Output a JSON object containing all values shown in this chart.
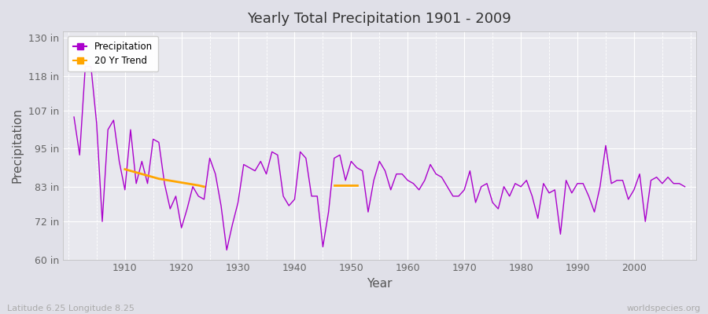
{
  "title": "Yearly Total Precipitation 1901 - 2009",
  "xlabel": "Year",
  "ylabel": "Precipitation",
  "subtitle_lat_lon": "Latitude 6.25 Longitude 8.25",
  "watermark": "worldspecies.org",
  "ylim": [
    60,
    132
  ],
  "yticks": [
    60,
    72,
    83,
    95,
    107,
    118,
    130
  ],
  "ytick_labels": [
    "60 in",
    "72 in",
    "83 in",
    "95 in",
    "107 in",
    "118 in",
    "130 in"
  ],
  "xlim": [
    1899,
    2011
  ],
  "precipitation_line_color": "#AA00CC",
  "trend_line_color": "#FFA500",
  "bg_color": "#E8E8EE",
  "fig_bg_color": "#E0E0E8",
  "grid_color": "#FFFFFF",
  "legend_items": [
    "Precipitation",
    "20 Yr Trend"
  ],
  "years": [
    1901,
    1902,
    1903,
    1904,
    1905,
    1906,
    1907,
    1908,
    1909,
    1910,
    1911,
    1912,
    1913,
    1914,
    1915,
    1916,
    1917,
    1918,
    1919,
    1920,
    1921,
    1922,
    1923,
    1924,
    1925,
    1926,
    1927,
    1928,
    1929,
    1930,
    1931,
    1932,
    1933,
    1934,
    1935,
    1936,
    1937,
    1938,
    1939,
    1940,
    1941,
    1942,
    1943,
    1944,
    1945,
    1946,
    1947,
    1948,
    1949,
    1950,
    1951,
    1952,
    1953,
    1954,
    1955,
    1956,
    1957,
    1958,
    1959,
    1960,
    1961,
    1962,
    1963,
    1964,
    1965,
    1966,
    1967,
    1968,
    1969,
    1970,
    1971,
    1972,
    1973,
    1974,
    1975,
    1976,
    1977,
    1978,
    1979,
    1980,
    1981,
    1982,
    1983,
    1984,
    1985,
    1986,
    1987,
    1988,
    1989,
    1990,
    1991,
    1992,
    1993,
    1994,
    1995,
    1996,
    1997,
    1998,
    1999,
    2000,
    2001,
    2002,
    2003,
    2004,
    2005,
    2006,
    2007,
    2008,
    2009
  ],
  "precip_values": [
    105,
    93,
    121,
    121,
    103,
    72,
    101,
    104,
    91,
    82,
    101,
    84,
    91,
    84,
    98,
    97,
    84,
    76,
    80,
    70,
    76,
    83,
    80,
    79,
    92,
    87,
    77,
    63,
    71,
    78,
    90,
    89,
    88,
    91,
    87,
    94,
    93,
    80,
    77,
    79,
    94,
    92,
    80,
    80,
    64,
    75,
    92,
    93,
    85,
    91,
    89,
    88,
    75,
    85,
    91,
    88,
    82,
    87,
    87,
    85,
    84,
    82,
    85,
    90,
    87,
    86,
    83,
    80,
    80,
    82,
    88,
    78,
    83,
    84,
    78,
    76,
    83,
    80,
    84,
    83,
    85,
    80,
    73,
    84,
    81,
    82,
    68,
    85,
    81,
    84,
    84,
    80,
    75,
    83,
    96,
    84,
    85,
    85,
    79,
    82,
    87,
    72,
    85,
    86,
    84,
    86,
    84,
    84,
    83
  ],
  "trend_seg1_years": [
    1910,
    1911,
    1912,
    1913,
    1914,
    1915,
    1916,
    1917,
    1918,
    1919,
    1920,
    1921,
    1922,
    1923,
    1924
  ],
  "trend_seg1_values": [
    88.5,
    88.0,
    87.5,
    87.0,
    86.5,
    86.0,
    85.5,
    85.2,
    84.9,
    84.6,
    84.3,
    84.0,
    83.7,
    83.4,
    83.0
  ],
  "trend_seg2_years": [
    1947,
    1948,
    1949,
    1950,
    1951
  ],
  "trend_seg2_values": [
    83.5,
    83.5,
    83.5,
    83.5,
    83.5
  ]
}
